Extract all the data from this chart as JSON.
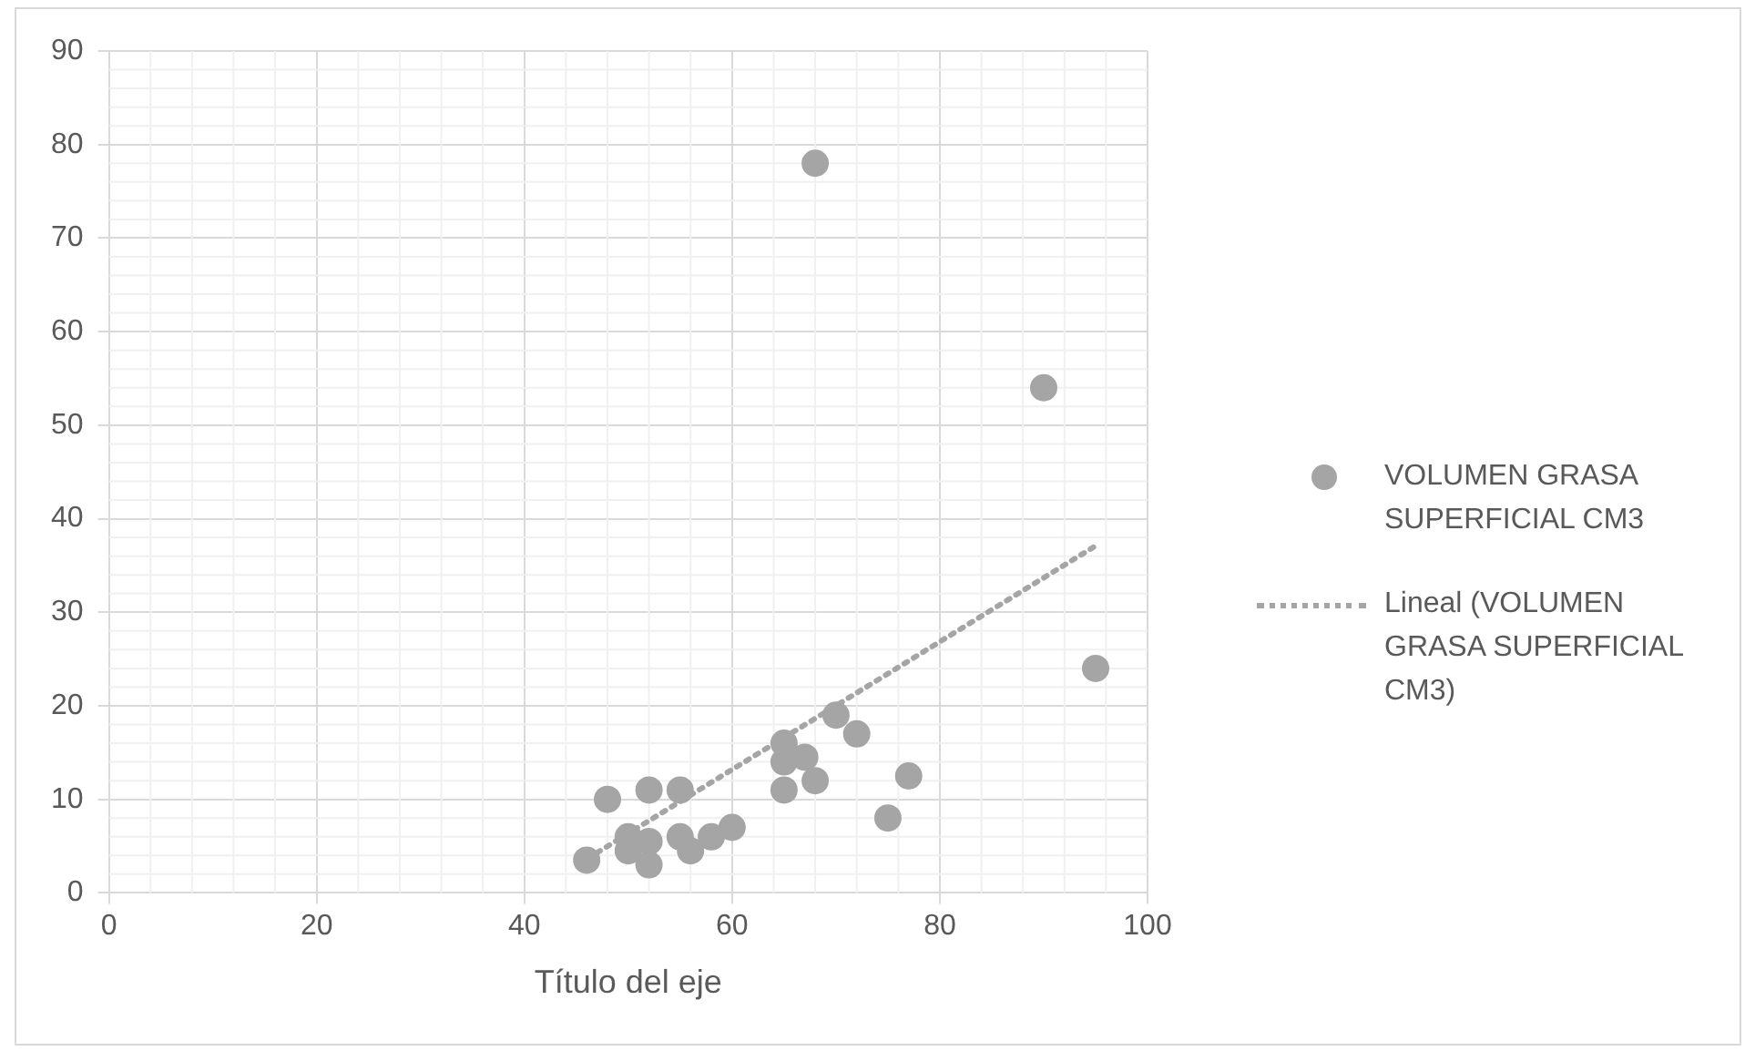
{
  "chart_data": {
    "type": "scatter",
    "xlabel": "Título del eje",
    "xlim": [
      0,
      100
    ],
    "xticks": [
      0,
      20,
      40,
      60,
      80,
      100
    ],
    "ylim": [
      0,
      90
    ],
    "yticks": [
      0,
      10,
      20,
      30,
      40,
      50,
      60,
      70,
      80,
      90
    ],
    "grid": true,
    "legend": "right",
    "series": [
      {
        "name": "VOLUMEN GRASA SUPERFICIAL CM3",
        "type": "scatter",
        "color": "#a5a5a5",
        "marker": "circle",
        "x": [
          68,
          90,
          95,
          70,
          72,
          65,
          67,
          65,
          77,
          68,
          65,
          52,
          55,
          48,
          75,
          60,
          58,
          55,
          50,
          52,
          50,
          56,
          46,
          52
        ],
        "values": [
          78,
          54,
          24,
          19,
          17,
          16,
          14.5,
          14,
          12.5,
          12,
          11,
          11,
          11,
          10,
          8,
          7,
          6,
          6,
          6,
          5.5,
          4.5,
          4.5,
          3.5,
          3
        ]
      },
      {
        "name": "Lineal (VOLUMEN GRASA SUPERFICIAL CM3)",
        "type": "line",
        "color": "#a5a5a5",
        "marker": "none",
        "line_style": "dotted",
        "x": [
          47,
          95
        ],
        "values": [
          4.3,
          37.1
        ]
      }
    ]
  }
}
